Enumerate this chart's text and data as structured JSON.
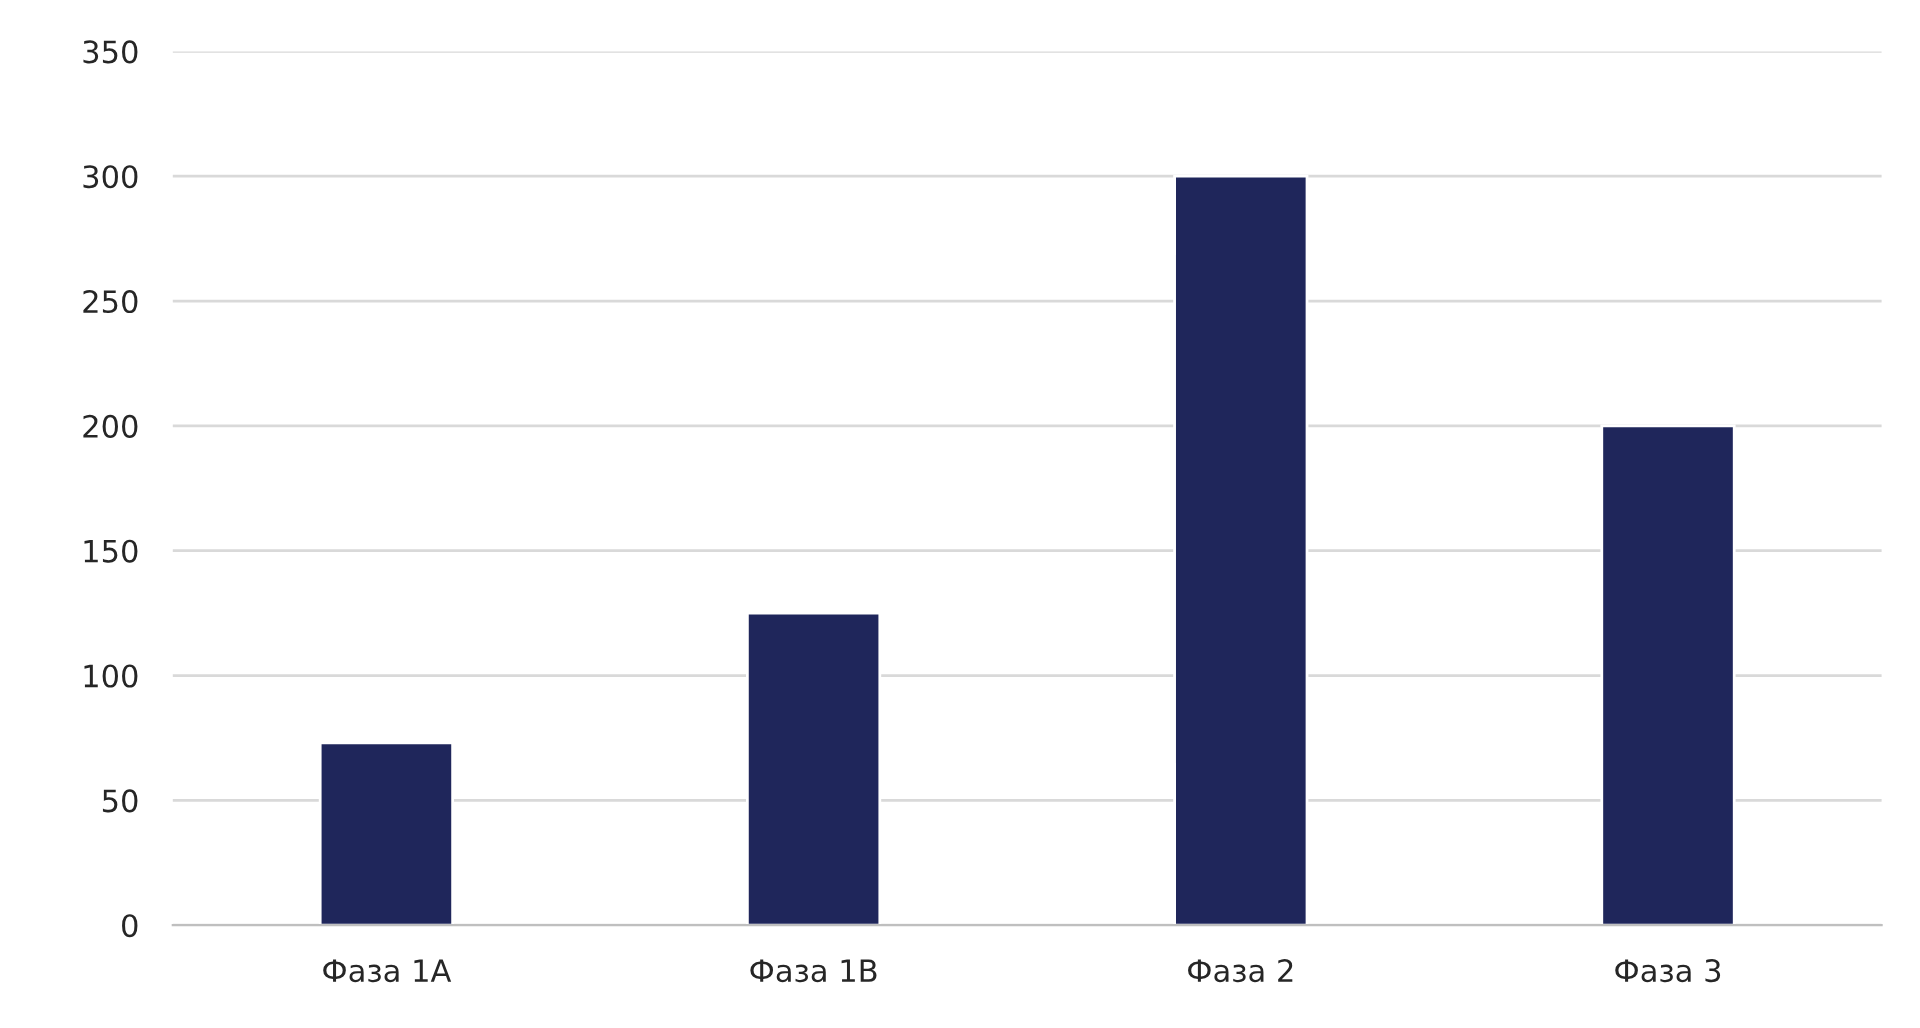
{
  "chart_data": {
    "type": "bar",
    "categories": [
      "Фаза 1А",
      "Фаза 1В",
      "Фаза 2",
      "Фаза 3"
    ],
    "values": [
      73,
      125,
      300,
      200
    ],
    "color": "#1f265b",
    "ylim": [
      0,
      350
    ],
    "yticks": [
      0,
      50,
      100,
      150,
      200,
      250,
      300,
      350
    ],
    "grid": "y"
  }
}
